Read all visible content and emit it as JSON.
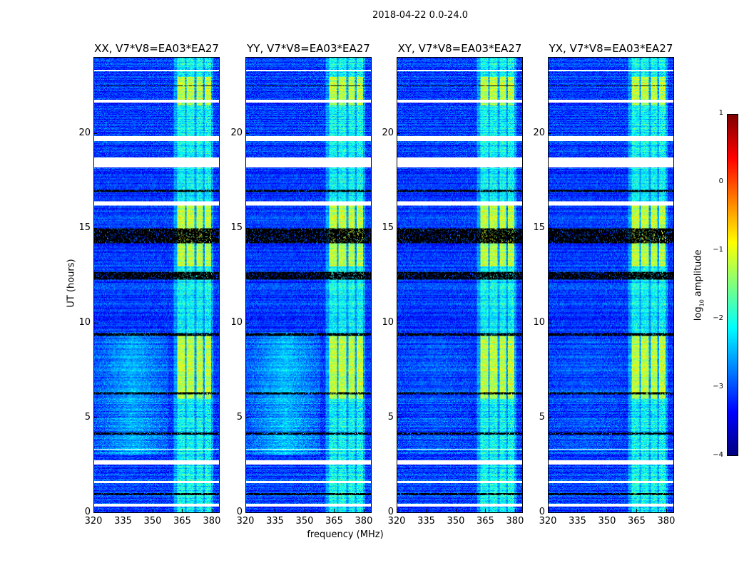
{
  "chart_data": {
    "type": "heatmap",
    "suptitle": "2018-04-22 0.0-24.0",
    "xlabel": "frequency (MHz)",
    "ylabel": "UT (hours)",
    "xlim": [
      320,
      384
    ],
    "ylim": [
      0,
      24
    ],
    "xticks": [
      "320",
      "335",
      "350",
      "365",
      "380"
    ],
    "xtick_values": [
      320,
      335,
      350,
      365,
      380
    ],
    "yticks": [
      "0",
      "5",
      "10",
      "15",
      "20"
    ],
    "ytick_values": [
      0,
      5,
      10,
      15,
      20
    ],
    "panels": [
      {
        "title": "XX, V7*V8=EA03*EA27",
        "low_freq_excess": 0.6
      },
      {
        "title": "YY, V7*V8=EA03*EA27",
        "low_freq_excess": 0.7
      },
      {
        "title": "XY, V7*V8=EA03*EA27",
        "low_freq_excess": 0.15
      },
      {
        "title": "YX, V7*V8=EA03*EA27",
        "low_freq_excess": 0.15
      }
    ],
    "rfi_channels_mhz": [
      [
        362.5,
        366.5
      ],
      [
        367.5,
        371.5
      ],
      [
        372.5,
        375.8
      ],
      [
        376.8,
        380.0
      ]
    ],
    "bright_rfi_hours": [
      [
        6.0,
        9.3
      ],
      [
        13.0,
        16.3
      ],
      [
        21.5,
        23.0
      ]
    ],
    "flagged_hours_white": [
      [
        0.3,
        0.45
      ],
      [
        1.55,
        1.65
      ],
      [
        2.5,
        2.75
      ],
      [
        3.3,
        3.35
      ],
      [
        16.2,
        16.4
      ],
      [
        18.2,
        18.75
      ],
      [
        19.6,
        19.85
      ],
      [
        21.65,
        21.8
      ],
      [
        23.3,
        23.35
      ]
    ],
    "flagged_hours_black": [
      [
        0.9,
        1.0
      ],
      [
        4.1,
        4.2
      ],
      [
        6.25,
        6.35
      ],
      [
        9.3,
        9.45
      ],
      [
        12.3,
        12.7
      ],
      [
        14.2,
        15.0
      ],
      [
        16.9,
        17.0
      ],
      [
        22.5,
        22.55
      ]
    ],
    "colorbar": {
      "label": "log10 amplitude",
      "label_main": "log",
      "label_sub": "10",
      "label_rest": " amplitude",
      "range": [
        -4,
        1
      ],
      "ticks": [
        "1",
        "0",
        "−1",
        "−2",
        "−3",
        "−4"
      ],
      "tick_values": [
        1,
        0,
        -1,
        -2,
        -3,
        -4
      ],
      "colormap": "jet"
    }
  }
}
